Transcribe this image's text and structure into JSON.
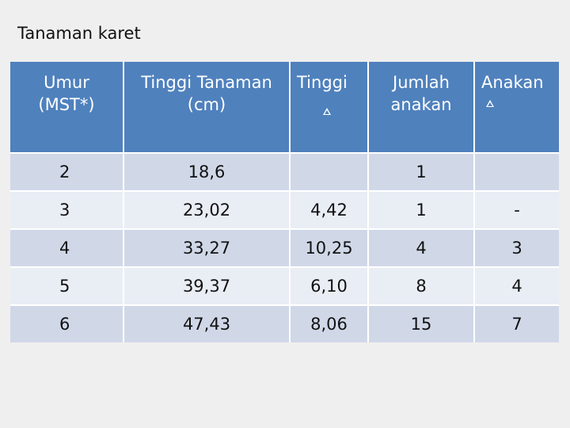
{
  "title": "Tanaman karet",
  "table": {
    "headers": [
      [
        "Umur",
        "(MST*)"
      ],
      [
        "Tinggi Tanaman",
        "(cm)"
      ],
      [
        "Tinggi",
        ""
      ],
      [
        "Jumlah",
        "anakan"
      ],
      [
        "Anakan",
        ""
      ]
    ],
    "header_icons": [
      "delta-icon",
      "delta-icon"
    ],
    "rows": [
      [
        "2",
        "18,6",
        "",
        "1",
        ""
      ],
      [
        "3",
        "23,02",
        "4,42",
        "1",
        "-"
      ],
      [
        "4",
        "33,27",
        "10,25",
        "4",
        "3"
      ],
      [
        "5",
        "39,37",
        "6,10",
        "8",
        "4"
      ],
      [
        "6",
        "47,43",
        "8,06",
        "15",
        "7"
      ]
    ]
  },
  "colors": {
    "header_bg": "#4f81bd",
    "row_odd": "#d0d8e8",
    "row_even": "#e9edf4",
    "page_bg": "#efefef"
  }
}
